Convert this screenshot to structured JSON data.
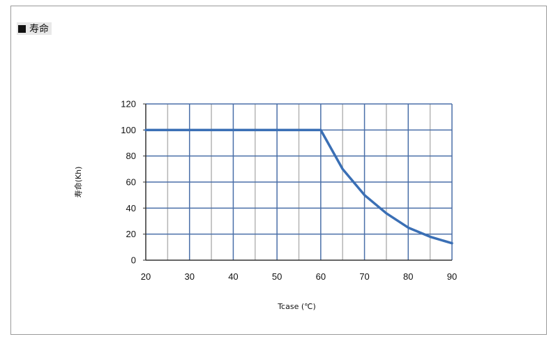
{
  "section": {
    "label": "寿命",
    "icon": "black-square-icon"
  },
  "chart_data": {
    "type": "line",
    "title": "",
    "xlabel": "Tcase (℃)",
    "ylabel": "寿命(Kh)",
    "xlim": [
      20,
      90
    ],
    "ylim": [
      0,
      120
    ],
    "x_ticks": [
      "20",
      "30",
      "40",
      "50",
      "60",
      "70",
      "80",
      "90"
    ],
    "y_ticks": [
      "0",
      "20",
      "40",
      "60",
      "80",
      "100",
      "120"
    ],
    "grid": true,
    "legend": "none",
    "series": [
      {
        "x": [
          20,
          60,
          65,
          70,
          75,
          80,
          85,
          90
        ],
        "y": [
          100,
          100,
          70,
          50,
          36,
          25,
          18,
          13
        ]
      }
    ],
    "colors": {
      "line": "#3a6fb5",
      "grid_major": "#4a6fa8",
      "grid_minor": "#b5b5b5",
      "axis": "#333333"
    }
  }
}
